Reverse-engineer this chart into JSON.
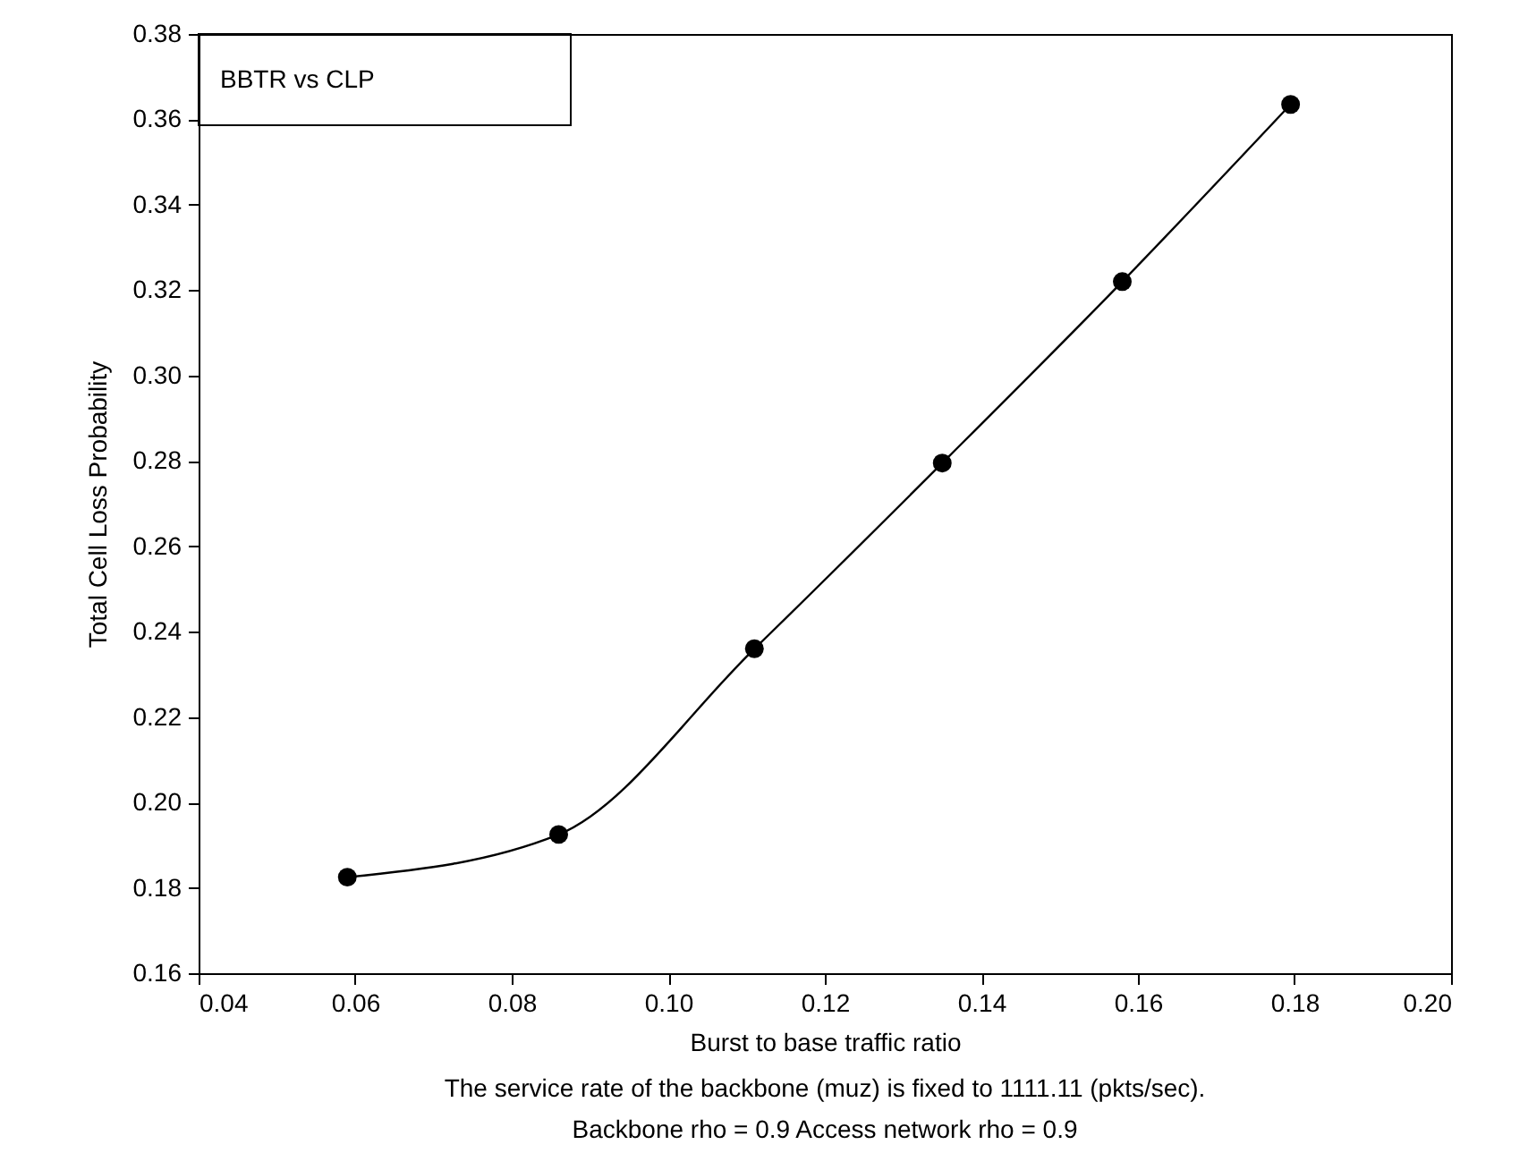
{
  "chart_data": {
    "type": "line",
    "xlabel": "Burst to base traffic ratio",
    "ylabel": "Total Cell Loss Probability",
    "annotations": [
      "BBTR vs CLP",
      "The service rate of the backbone (muz) is fixed to 1111.11 (pkts/sec).",
      "Backbone rho = 0.9 Access network rho = 0.9"
    ],
    "series": [
      {
        "color": "#000000",
        "x": [
          0.059,
          0.086,
          0.111,
          0.135,
          0.158,
          0.1795
        ],
        "values": [
          0.1825,
          0.1925,
          0.236,
          0.2795,
          0.322,
          0.3635
        ]
      }
    ],
    "xlim": [
      0.04,
      0.2
    ],
    "xticks": [
      0.04,
      0.06,
      0.08,
      {
        "value": 0.1,
        "label": "0.10"
      },
      0.12,
      0.14,
      0.16,
      0.18,
      {
        "value": 0.2,
        "label": "0.20"
      }
    ],
    "ylim": [
      0.16,
      0.38
    ],
    "yticks": [
      0.16,
      0.18,
      {
        "value": 0.2,
        "label": "0.20"
      },
      0.22,
      0.24,
      0.26,
      0.28,
      {
        "value": 0.3,
        "label": "0.30"
      },
      0.32,
      0.34,
      0.36,
      0.38
    ],
    "grid": false,
    "marker": "circle",
    "line_style": "solid"
  }
}
